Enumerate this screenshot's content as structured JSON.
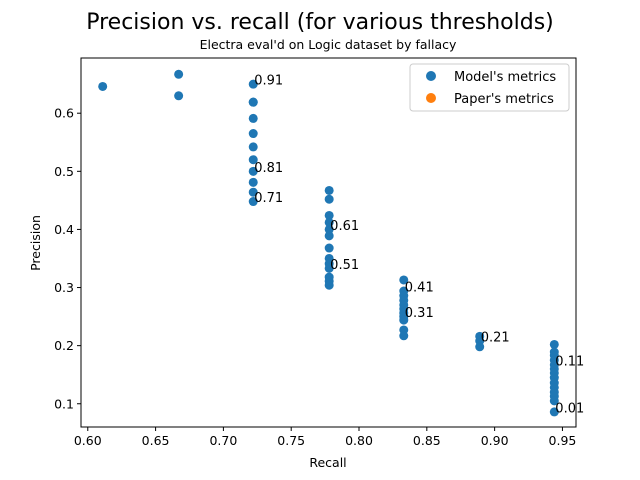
{
  "chart_data": {
    "type": "scatter",
    "title": "Precision vs. recall (for various thresholds)",
    "subtitle": "Electra eval'd on Logic dataset by fallacy",
    "xlabel": "Recall",
    "ylabel": "Precision",
    "xlim": [
      0.595,
      0.96
    ],
    "ylim": [
      0.06,
      0.695
    ],
    "xticks": [
      0.6,
      0.65,
      0.7,
      0.75,
      0.8,
      0.85,
      0.9,
      0.95
    ],
    "xtick_labels": [
      "0.60",
      "0.65",
      "0.70",
      "0.75",
      "0.80",
      "0.85",
      "0.90",
      "0.95"
    ],
    "yticks": [
      0.1,
      0.2,
      0.3,
      0.4,
      0.5,
      0.6
    ],
    "ytick_labels": [
      "0.1",
      "0.2",
      "0.3",
      "0.4",
      "0.5",
      "0.6"
    ],
    "grid": false,
    "legend_position": "top-right",
    "series": [
      {
        "name": "Model's metrics",
        "color": "#1f77b4",
        "points": [
          [
            0.611,
            0.646
          ],
          [
            0.667,
            0.667
          ],
          [
            0.667,
            0.63
          ],
          [
            0.722,
            0.65
          ],
          [
            0.722,
            0.619
          ],
          [
            0.722,
            0.619
          ],
          [
            0.722,
            0.591
          ],
          [
            0.722,
            0.565
          ],
          [
            0.722,
            0.542
          ],
          [
            0.722,
            0.52
          ],
          [
            0.722,
            0.5
          ],
          [
            0.722,
            0.481
          ],
          [
            0.722,
            0.464
          ],
          [
            0.722,
            0.448
          ],
          [
            0.778,
            0.467
          ],
          [
            0.778,
            0.452
          ],
          [
            0.778,
            0.424
          ],
          [
            0.778,
            0.412
          ],
          [
            0.778,
            0.4
          ],
          [
            0.778,
            0.389
          ],
          [
            0.778,
            0.368
          ],
          [
            0.778,
            0.35
          ],
          [
            0.778,
            0.341
          ],
          [
            0.778,
            0.333
          ],
          [
            0.778,
            0.318
          ],
          [
            0.778,
            0.311
          ],
          [
            0.778,
            0.304
          ],
          [
            0.833,
            0.313
          ],
          [
            0.833,
            0.294
          ],
          [
            0.833,
            0.286
          ],
          [
            0.833,
            0.278
          ],
          [
            0.833,
            0.27
          ],
          [
            0.833,
            0.263
          ],
          [
            0.833,
            0.256
          ],
          [
            0.833,
            0.25
          ],
          [
            0.833,
            0.244
          ],
          [
            0.833,
            0.227
          ],
          [
            0.833,
            0.217
          ],
          [
            0.889,
            0.216
          ],
          [
            0.889,
            0.208
          ],
          [
            0.889,
            0.198
          ],
          [
            0.944,
            0.202
          ],
          [
            0.944,
            0.189
          ],
          [
            0.944,
            0.183
          ],
          [
            0.944,
            0.175
          ],
          [
            0.944,
            0.167
          ],
          [
            0.944,
            0.16
          ],
          [
            0.944,
            0.153
          ],
          [
            0.944,
            0.145
          ],
          [
            0.944,
            0.136
          ],
          [
            0.944,
            0.128
          ],
          [
            0.944,
            0.12
          ],
          [
            0.944,
            0.113
          ],
          [
            0.944,
            0.105
          ],
          [
            0.944,
            0.086
          ]
        ]
      },
      {
        "name": "Paper's metrics",
        "color": "#ff7f0e",
        "points": []
      }
    ],
    "annotations": [
      {
        "text": "0.91",
        "x": 0.722,
        "y": 0.65
      },
      {
        "text": "0.81",
        "x": 0.722,
        "y": 0.5
      },
      {
        "text": "0.71",
        "x": 0.722,
        "y": 0.448
      },
      {
        "text": "0.61",
        "x": 0.778,
        "y": 0.4
      },
      {
        "text": "0.51",
        "x": 0.778,
        "y": 0.333
      },
      {
        "text": "0.41",
        "x": 0.833,
        "y": 0.294
      },
      {
        "text": "0.31",
        "x": 0.833,
        "y": 0.25
      },
      {
        "text": "0.21",
        "x": 0.889,
        "y": 0.208
      },
      {
        "text": "0.11",
        "x": 0.944,
        "y": 0.167
      },
      {
        "text": "0.01",
        "x": 0.944,
        "y": 0.086
      }
    ]
  }
}
